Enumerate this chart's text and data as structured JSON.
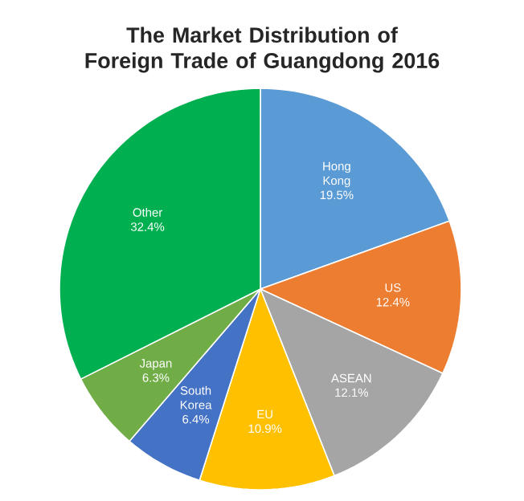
{
  "chart_data": {
    "type": "pie",
    "title": "The Market Distribution of Foreign Trade of Guangdong 2016",
    "categories": [
      "Hong Kong",
      "US",
      "ASEAN",
      "EU",
      "South Korea",
      "Japan",
      "Other"
    ],
    "values": [
      19.5,
      12.4,
      12.1,
      10.9,
      6.4,
      6.3,
      32.4
    ],
    "value_labels": [
      "19.5%",
      "12.4%",
      "12.1%",
      "10.9%",
      "6.4%",
      "6.3%",
      "32.4%"
    ],
    "colors": [
      "#5b9bd5",
      "#ed7d31",
      "#a5a5a5",
      "#ffc000",
      "#4472c4",
      "#70ad47",
      "#00b050"
    ]
  }
}
